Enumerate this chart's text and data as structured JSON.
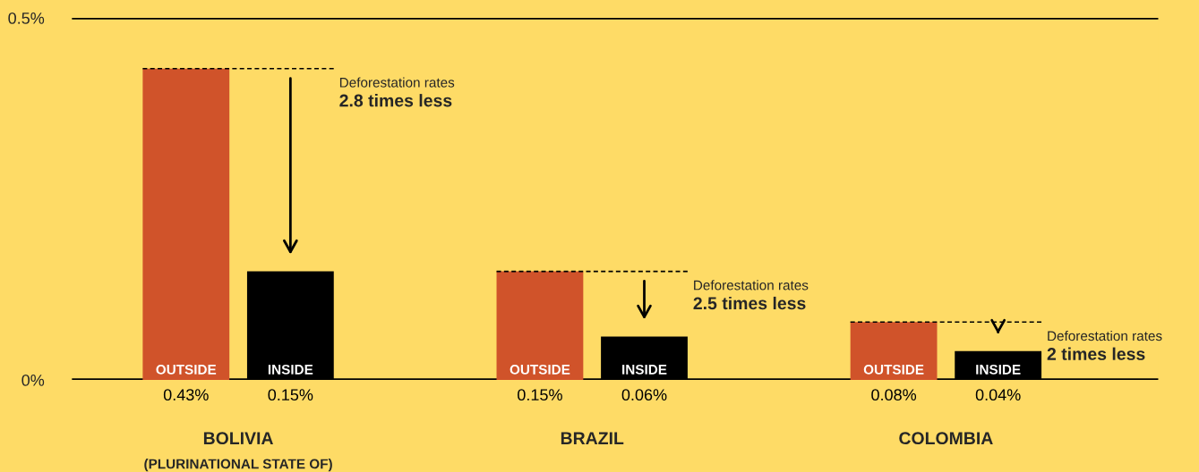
{
  "chart_data": {
    "type": "bar",
    "categories": [
      "BOLIVIA\n(PLURINATIONAL STATE OF)",
      "BRAZIL",
      "COLOMBIA"
    ],
    "series": [
      {
        "name": "OUTSIDE",
        "color": "#d0532a",
        "values": [
          0.43,
          0.15,
          0.08
        ],
        "value_labels": [
          "0.43%",
          "0.15%",
          "0.08%"
        ]
      },
      {
        "name": "INSIDE",
        "color": "#000000",
        "values": [
          0.15,
          0.06,
          0.04
        ],
        "value_labels": [
          "0.15%",
          "0.06%",
          "0.04%"
        ]
      }
    ],
    "ylim": [
      0,
      0.5
    ],
    "yticks": [
      {
        "value": 0,
        "label": "0%"
      },
      {
        "value": 0.5,
        "label": "0.5%"
      }
    ],
    "grid": "y",
    "legend": false,
    "ref_lines": [
      {
        "axis": "y",
        "value": 0.43,
        "label": "Deforestation rates\n2.8 times less",
        "line_style": "dashed"
      },
      {
        "axis": "y",
        "value": 0.15,
        "label": "Deforestation rates\n2.5 times less",
        "line_style": "dashed"
      },
      {
        "axis": "y",
        "value": 0.08,
        "label": "Deforestation rates\n2 times less",
        "line_style": "dashed"
      }
    ]
  }
}
